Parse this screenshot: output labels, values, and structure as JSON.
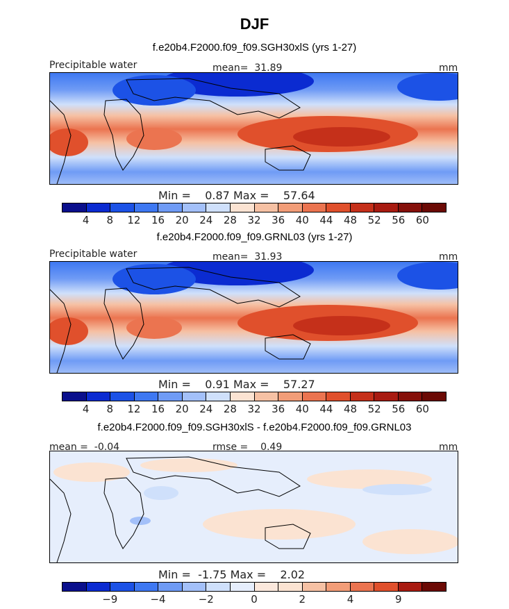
{
  "figure": {
    "title": "DJF"
  },
  "chart_data": [
    {
      "type": "heatmap",
      "title": "f.e20b4.F2000.f09_f09.SGH30xlS (yrs 1-27)",
      "field": "Precipitable water",
      "units": "mm",
      "mean_label": "mean=",
      "mean": "31.89",
      "min_label": "Min =",
      "min": "0.87",
      "max_label": "Max =",
      "max": "57.64",
      "colorbar_ticks": [
        "4",
        "8",
        "12",
        "16",
        "20",
        "24",
        "28",
        "32",
        "36",
        "40",
        "44",
        "48",
        "52",
        "56",
        "60"
      ],
      "colorbar_levels": 16,
      "colors": [
        "#0a0f8c",
        "#0b2bd1",
        "#1c52e6",
        "#3e78f2",
        "#6f9bf5",
        "#a3c0f9",
        "#cfe0fb",
        "#fbe3d2",
        "#f6c1a4",
        "#f29d78",
        "#eb7450",
        "#e0502c",
        "#c5301a",
        "#a81b11",
        "#85100a",
        "#6b0a05"
      ]
    },
    {
      "type": "heatmap",
      "title": "f.e20b4.F2000.f09_f09.GRNL03 (yrs 1-27)",
      "field": "Precipitable water",
      "units": "mm",
      "mean_label": "mean=",
      "mean": "31.93",
      "min_label": "Min =",
      "min": "0.91",
      "max_label": "Max =",
      "max": "57.27",
      "colorbar_ticks": [
        "4",
        "8",
        "12",
        "16",
        "20",
        "24",
        "28",
        "32",
        "36",
        "40",
        "44",
        "48",
        "52",
        "56",
        "60"
      ],
      "colorbar_levels": 16,
      "colors": [
        "#0a0f8c",
        "#0b2bd1",
        "#1c52e6",
        "#3e78f2",
        "#6f9bf5",
        "#a3c0f9",
        "#cfe0fb",
        "#fbe3d2",
        "#f6c1a4",
        "#f29d78",
        "#eb7450",
        "#e0502c",
        "#c5301a",
        "#a81b11",
        "#85100a",
        "#6b0a05"
      ]
    },
    {
      "type": "heatmap",
      "title": "f.e20b4.F2000.f09_f09.SGH30xlS - f.e20b4.F2000.f09_f09.GRNL03",
      "units": "mm",
      "mean_label": "mean =",
      "mean": "-0.04",
      "rmse_label": "rmse =",
      "rmse": "0.49",
      "min_label": "Min =",
      "min": "-1.75",
      "max_label": "Max =",
      "max": "2.02",
      "colorbar_ticks": [
        "−9",
        "−4",
        "−2",
        "0",
        "2",
        "4",
        "9"
      ],
      "colorbar_levels": 16,
      "colors": [
        "#0a0f8c",
        "#0b2bd1",
        "#1c52e6",
        "#3e78f2",
        "#6f9bf5",
        "#a3c0f9",
        "#cfe0fb",
        "#e6eefc",
        "#fbe8dc",
        "#fbe3d2",
        "#f6c1a4",
        "#f29d78",
        "#eb7450",
        "#e0502c",
        "#a81b11",
        "#6b0a05"
      ]
    }
  ]
}
